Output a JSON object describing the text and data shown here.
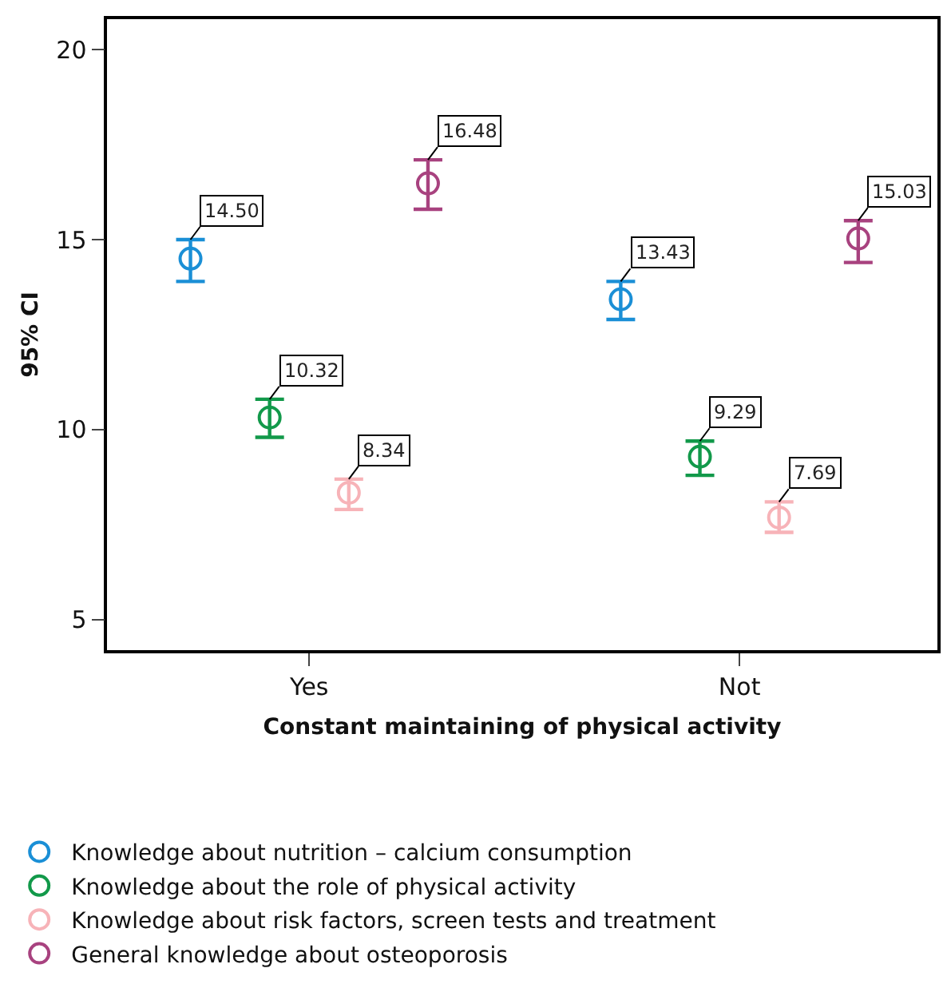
{
  "chart_data": {
    "type": "scatter",
    "xlabel": "Constant maintaining of physical activity",
    "ylabel": "95% CI",
    "categories": [
      "Yes",
      "Not"
    ],
    "series": [
      {
        "name": "Knowledge about nutrition – calcium consumption",
        "color": "#1a8fd6",
        "values": [
          14.5,
          13.43
        ],
        "value_labels": [
          "14.50",
          "13.43"
        ],
        "errors": [
          [
            13.9,
            15.0
          ],
          [
            12.9,
            13.9
          ]
        ]
      },
      {
        "name": "Knowledge about the role of physical activity",
        "color": "#12994a",
        "values": [
          10.32,
          9.29
        ],
        "value_labels": [
          "10.32",
          "9.29"
        ],
        "errors": [
          [
            9.8,
            10.8
          ],
          [
            8.8,
            9.7
          ]
        ]
      },
      {
        "name": "Knowledge about risk factors, screen tests and treatment",
        "color": "#f7b3b8",
        "values": [
          8.34,
          7.69
        ],
        "value_labels": [
          "8.34",
          "7.69"
        ],
        "errors": [
          [
            7.9,
            8.7
          ],
          [
            7.3,
            8.1
          ]
        ]
      },
      {
        "name": "General knowledge about osteoporosis",
        "color": "#a8427f",
        "values": [
          16.48,
          15.03
        ],
        "value_labels": [
          "16.48",
          "15.03"
        ],
        "errors": [
          [
            15.8,
            17.1
          ],
          [
            14.4,
            15.5
          ]
        ]
      }
    ],
    "ylim": [
      4.2,
      20.8
    ],
    "yticks": [
      5,
      10,
      15,
      20
    ],
    "legend": "bottom",
    "marker": "circle"
  }
}
